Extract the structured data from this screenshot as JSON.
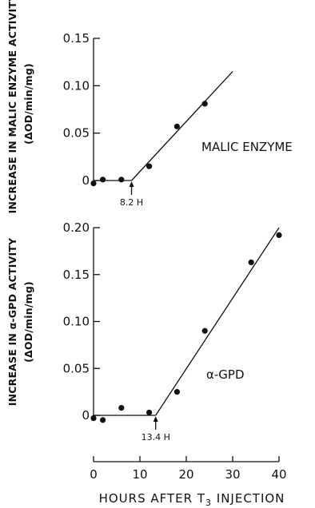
{
  "chart_data": [
    {
      "type": "scatter",
      "ylabel_line1": "INCREASE IN MALIC ENZYME ACTIVITY",
      "ylabel_line2": "(ΔOD/min/mg)",
      "series_label": "MALIC ENZYME",
      "x": [
        0,
        2,
        6,
        12,
        18,
        24
      ],
      "y": [
        -0.003,
        0.001,
        0.001,
        0.015,
        0.057,
        0.081
      ],
      "fit_line": {
        "x": [
          0,
          8.2,
          30
        ],
        "y": [
          0,
          0,
          0.115
        ]
      },
      "annotation": {
        "label": "8.2 H",
        "x": 8.2
      },
      "xlim": [
        0,
        40
      ],
      "ylim": [
        0,
        0.15
      ],
      "yticks": [
        0,
        0.05,
        0.1,
        0.15
      ],
      "ytick_labels": [
        "0",
        "0.05",
        "0.10",
        "0.15"
      ]
    },
    {
      "type": "scatter",
      "ylabel_line1": "INCREASE IN α-GPD ACTIVITY",
      "ylabel_line2": "(ΔOD/min/mg)",
      "series_label": "α-GPD",
      "x": [
        0,
        2,
        6,
        12,
        18,
        24,
        34,
        40
      ],
      "y": [
        -0.003,
        -0.005,
        0.008,
        0.003,
        0.025,
        0.09,
        0.163,
        0.192
      ],
      "fit_line": {
        "x": [
          0,
          13.4,
          40
        ],
        "y": [
          0,
          0,
          0.2
        ]
      },
      "annotation": {
        "label": "13.4 H",
        "x": 13.4
      },
      "xlim": [
        0,
        40
      ],
      "ylim": [
        0,
        0.2
      ],
      "yticks": [
        0,
        0.05,
        0.1,
        0.15,
        0.2
      ],
      "ytick_labels": [
        "0",
        "0.05",
        "0.10",
        "0.15",
        "0.20"
      ]
    }
  ],
  "x_axis": {
    "ticks": [
      0,
      10,
      20,
      30,
      40
    ],
    "tick_labels": [
      "0",
      "10",
      "20",
      "30",
      "40"
    ],
    "label_part1": "HOURS AFTER T",
    "label_sub": "3",
    "label_part2": " INJECTION"
  }
}
